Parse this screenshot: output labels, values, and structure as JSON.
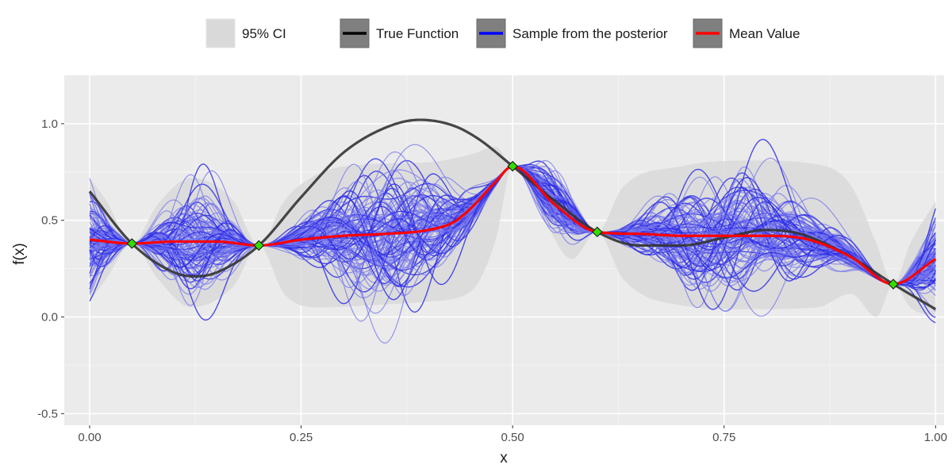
{
  "chart_data": {
    "type": "line",
    "title": "",
    "xlabel": "x",
    "ylabel": "f(x)",
    "xlim": [
      -0.03,
      1.01
    ],
    "ylim": [
      -0.56,
      1.25
    ],
    "x_ticks": [
      0.0,
      0.25,
      0.5,
      0.75,
      1.0
    ],
    "x_tick_labels": [
      "0.00",
      "0.25",
      "0.50",
      "0.75",
      "1.00"
    ],
    "y_ticks": [
      -0.5,
      0.0,
      0.5,
      1.0
    ],
    "y_tick_labels": [
      "-0.5",
      "0.0",
      "0.5",
      "1.0"
    ],
    "grid": true,
    "legend_position": "top",
    "legend": [
      {
        "key": "ci",
        "label": "95% CI",
        "swatch": "#d9d9d9",
        "kind": "fill"
      },
      {
        "key": "true",
        "label": "True Function",
        "swatch": "#000000",
        "kind": "line"
      },
      {
        "key": "samples",
        "label": "Sample from the posterior",
        "swatch": "#0000ff",
        "kind": "line"
      },
      {
        "key": "mean",
        "label": "Mean Value",
        "swatch": "#ff0000",
        "kind": "line"
      }
    ],
    "observations": {
      "x": [
        0.05,
        0.2,
        0.5,
        0.6,
        0.95
      ],
      "y": [
        0.38,
        0.37,
        0.78,
        0.44,
        0.17
      ]
    },
    "series": [
      {
        "name": "True Function",
        "color": "#333333",
        "x": [
          0.0,
          0.05,
          0.1,
          0.125,
          0.15,
          0.2,
          0.25,
          0.3,
          0.35,
          0.39,
          0.43,
          0.46,
          0.5,
          0.55,
          0.6,
          0.65,
          0.7,
          0.75,
          0.8,
          0.84,
          0.9,
          0.95,
          1.0
        ],
        "values": [
          0.65,
          0.38,
          0.23,
          0.21,
          0.23,
          0.37,
          0.62,
          0.85,
          0.98,
          1.02,
          0.99,
          0.92,
          0.78,
          0.6,
          0.44,
          0.37,
          0.37,
          0.41,
          0.45,
          0.43,
          0.31,
          0.17,
          0.04
        ]
      },
      {
        "name": "Mean Value",
        "color": "#ff0000",
        "x": [
          0.0,
          0.05,
          0.1,
          0.15,
          0.2,
          0.25,
          0.3,
          0.35,
          0.4,
          0.43,
          0.45,
          0.48,
          0.5,
          0.55,
          0.6,
          0.65,
          0.7,
          0.75,
          0.8,
          0.85,
          0.9,
          0.95,
          1.0
        ],
        "values": [
          0.4,
          0.38,
          0.39,
          0.39,
          0.37,
          0.4,
          0.42,
          0.43,
          0.45,
          0.49,
          0.56,
          0.7,
          0.78,
          0.58,
          0.44,
          0.43,
          0.42,
          0.42,
          0.42,
          0.4,
          0.31,
          0.17,
          0.3
        ]
      }
    ],
    "ci_band": {
      "x": [
        0.0,
        0.02,
        0.05,
        0.08,
        0.12,
        0.17,
        0.2,
        0.23,
        0.27,
        0.33,
        0.4,
        0.45,
        0.48,
        0.5,
        0.53,
        0.57,
        0.6,
        0.63,
        0.7,
        0.78,
        0.86,
        0.9,
        0.93,
        0.95,
        0.97,
        1.0
      ],
      "upper": [
        0.72,
        0.6,
        0.38,
        0.58,
        0.72,
        0.6,
        0.37,
        0.6,
        0.74,
        0.79,
        0.8,
        0.84,
        0.88,
        0.78,
        0.79,
        0.62,
        0.44,
        0.67,
        0.78,
        0.81,
        0.79,
        0.68,
        0.38,
        0.17,
        0.38,
        0.6
      ],
      "lower": [
        0.08,
        0.2,
        0.38,
        0.2,
        0.05,
        0.16,
        0.37,
        0.12,
        0.05,
        0.06,
        0.08,
        0.13,
        0.4,
        0.78,
        0.57,
        0.3,
        0.44,
        0.2,
        0.06,
        0.04,
        0.05,
        0.12,
        0.0,
        0.17,
        0.05,
        0.0
      ]
    },
    "posterior_samples": {
      "count": 100,
      "colors": [
        "#7777ee",
        "#2f2fe6"
      ],
      "sd_envelope": {
        "x": [
          0.0,
          0.05,
          0.125,
          0.2,
          0.35,
          0.5,
          0.55,
          0.6,
          0.75,
          0.95,
          1.0
        ],
        "values": [
          0.16,
          0.0,
          0.17,
          0.0,
          0.2,
          0.0,
          0.1,
          0.0,
          0.19,
          0.0,
          0.13
        ]
      }
    }
  }
}
